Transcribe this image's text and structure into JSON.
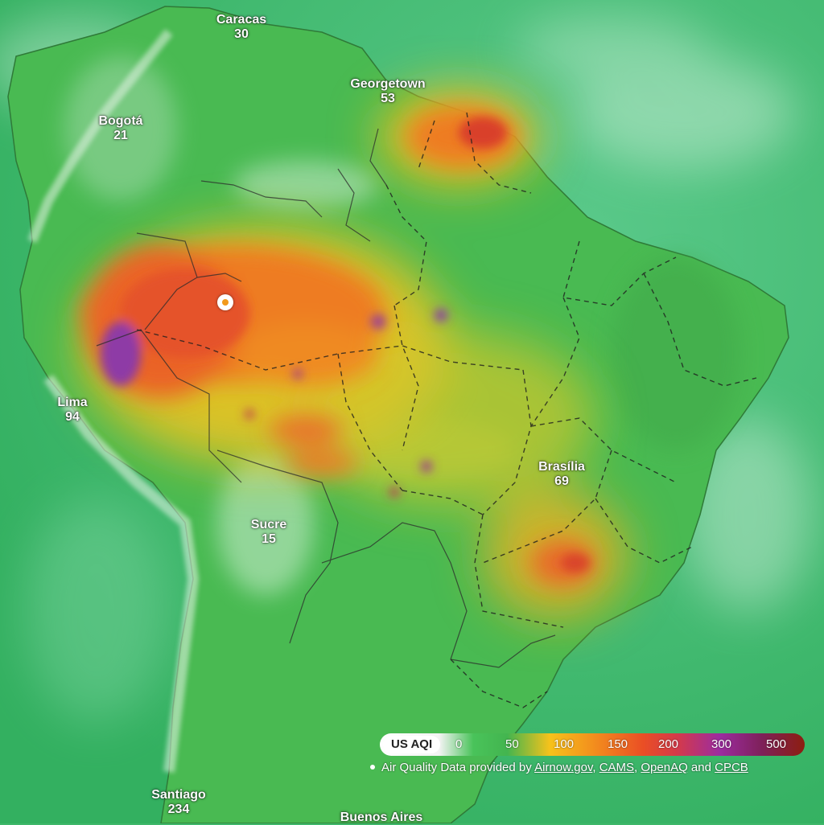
{
  "cities": [
    {
      "id": "caracas",
      "name": "Caracas",
      "aqi": "30"
    },
    {
      "id": "georgetown",
      "name": "Georgetown",
      "aqi": "53"
    },
    {
      "id": "bogota",
      "name": "Bogotá",
      "aqi": "21"
    },
    {
      "id": "lima",
      "name": "Lima",
      "aqi": "94"
    },
    {
      "id": "brasilia",
      "name": "Brasília",
      "aqi": "69"
    },
    {
      "id": "sucre",
      "name": "Sucre",
      "aqi": "15"
    },
    {
      "id": "santiago",
      "name": "Santiago",
      "aqi": "234"
    },
    {
      "id": "buenos-aires",
      "name": "Buenos Aires",
      "aqi": ""
    }
  ],
  "legend": {
    "title": "US AQI",
    "ticks": [
      "0",
      "50",
      "100",
      "150",
      "200",
      "300",
      "500"
    ]
  },
  "credit": {
    "prefix": "Air Quality Data provided by ",
    "links": [
      "Airnow.gov",
      "CAMS",
      "OpenAQ",
      "CPCB"
    ],
    "sep1": ", ",
    "sep2": ", ",
    "sep3": " and "
  },
  "colors": {
    "ocean": "#3fb86a",
    "land_good": "#45b84f",
    "moderate": "#f3c21e",
    "unhealthy_sensitive": "#f08b22",
    "unhealthy": "#e5502a",
    "very_unhealthy": "#8f3aa8"
  }
}
